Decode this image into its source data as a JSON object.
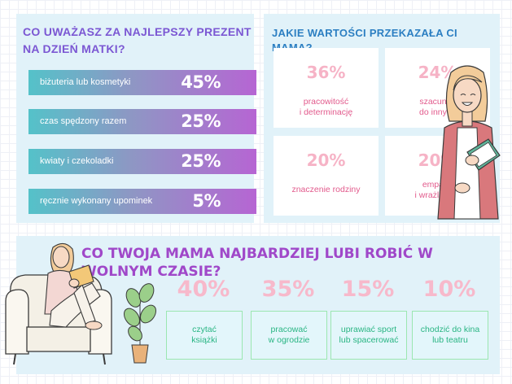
{
  "gifts": {
    "title": "CO UWAŻASZ ZA NAJLEPSZY PREZENT NA DZIEŃ MATKI?",
    "items": [
      {
        "label": "biżuteria lub kosmetyki",
        "value": "45%"
      },
      {
        "label": "czas spędzony razem",
        "value": "25%"
      },
      {
        "label": "kwiaty i czekoladki",
        "value": "25%"
      },
      {
        "label": "ręcznie wykonany upominek",
        "value": "5%"
      }
    ]
  },
  "values": {
    "title": "JAKIE WARTOŚCI PRZEKAZAŁA CI MAMA?",
    "cards": [
      {
        "value": "36%",
        "label": "pracowitość\ni determinację"
      },
      {
        "value": "24%",
        "label": "szacunek\ndo innych"
      },
      {
        "value": "20%",
        "label": "znaczenie rodziny"
      },
      {
        "value": "20%",
        "label": "empatię\ni wrażliwość"
      }
    ]
  },
  "hobbies": {
    "title": "CO TWOJA MAMA NAJBARDZIEJ LUBI ROBIĆ W WOLNYM CZASIE?",
    "items": [
      {
        "value": "40%",
        "label": "czytać\nksiążki"
      },
      {
        "value": "35%",
        "label": "pracować\nw ogrodzie"
      },
      {
        "value": "15%",
        "label": "uprawiać sport\nlub spacerować"
      },
      {
        "value": "10%",
        "label": "chodzić do kina\nlub teatru"
      }
    ]
  },
  "colors": {
    "panel_bg": "#e1f2f9",
    "gifts_title": "#7b57d3",
    "values_title": "#2c7fc2",
    "hobbies_title": "#a048c9",
    "percent_pink": "#f6b3c6",
    "card_text": "#e25a8c",
    "hobby_text": "#29b583",
    "bar_gradient_start": "#54c2c9",
    "bar_gradient_end": "#b665d3"
  },
  "illustrations": [
    "woman-holding-book-illustration",
    "woman-reading-in-armchair-illustration",
    "potted-plant-illustration"
  ]
}
